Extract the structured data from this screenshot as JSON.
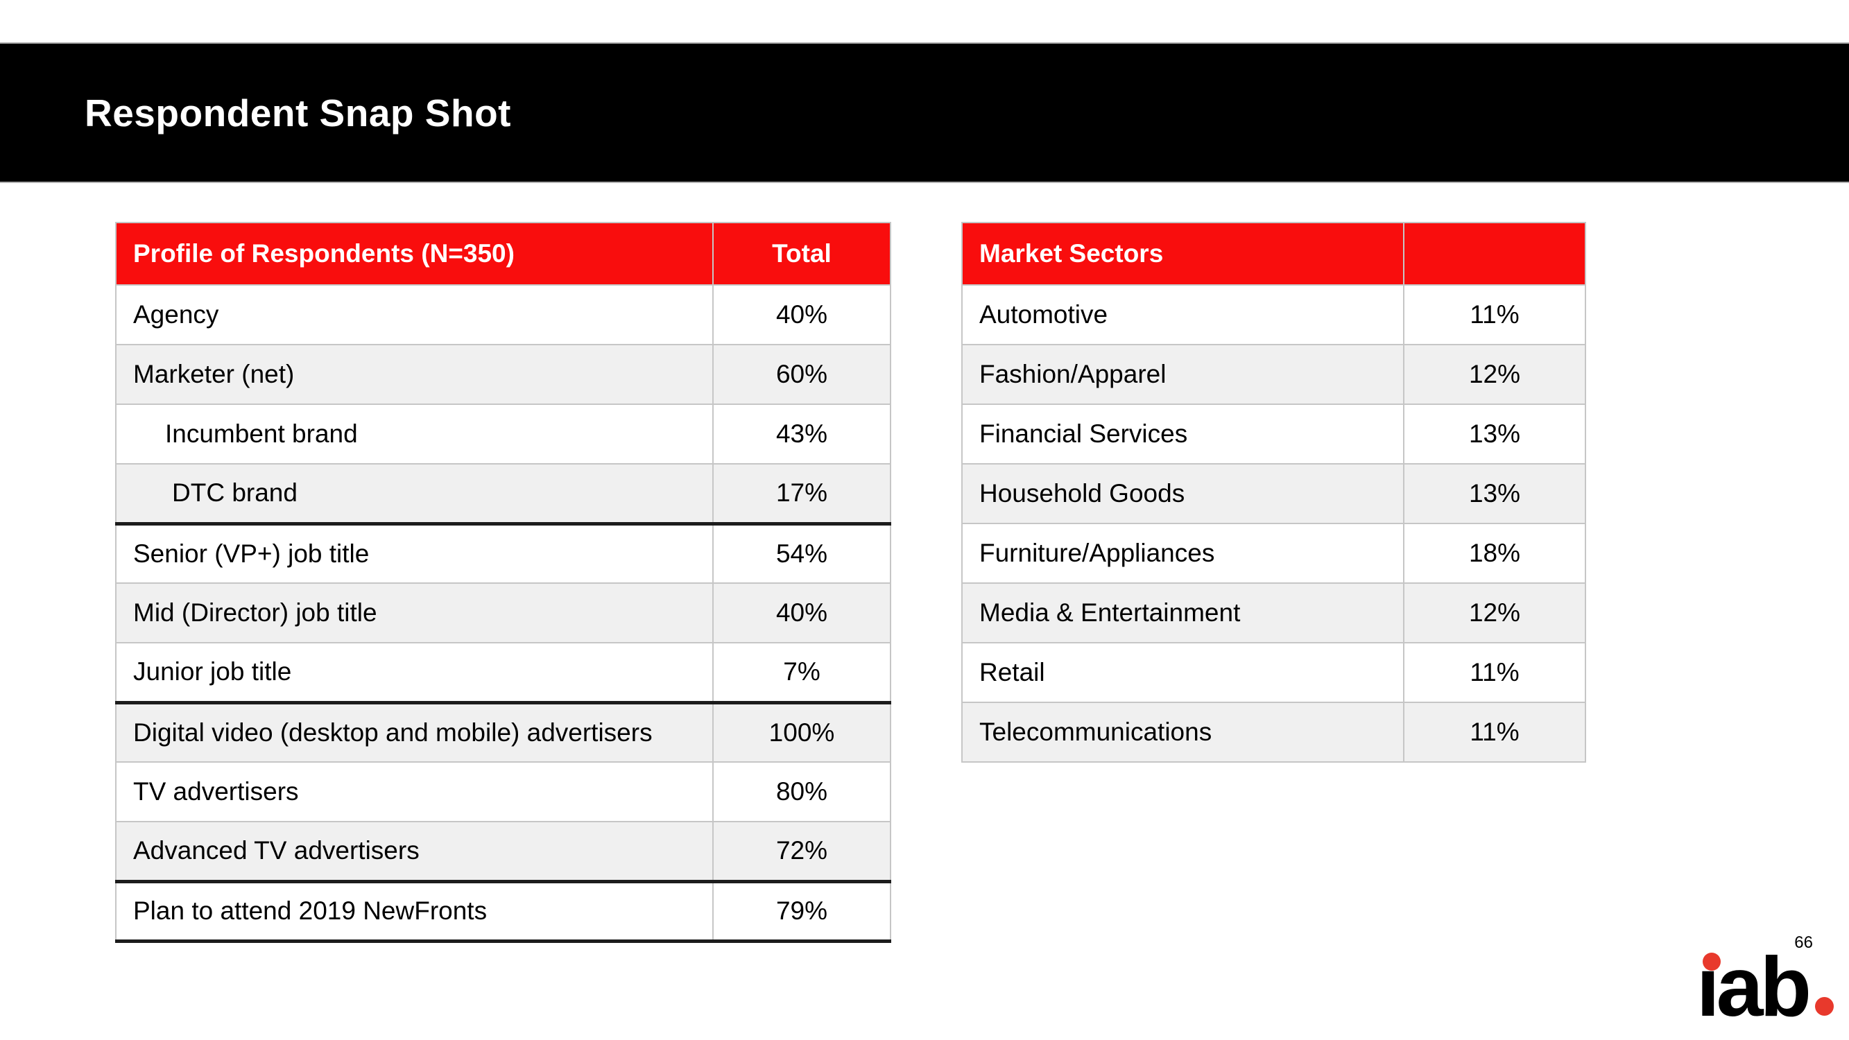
{
  "slide": {
    "title": "Respondent Snap Shot",
    "page_number": "66",
    "logo": {
      "text": "iab",
      "render_text": "ıab"
    }
  },
  "colors": {
    "header_band": "#000000",
    "accent_red": "#f90d0d",
    "logo_red": "#e8392c",
    "alt_row_gray": "#f0f0f0",
    "thin_border": "#c6c6c6",
    "thick_border": "#1c1c1c"
  },
  "left_table": {
    "header": {
      "label": "Profile of Respondents (N=350)",
      "value": "Total"
    },
    "rows": [
      {
        "label": "Agency",
        "value": "40%",
        "indent": 0,
        "section_break_below": false
      },
      {
        "label": "Marketer (net)",
        "value": "60%",
        "indent": 0,
        "section_break_below": false
      },
      {
        "label": "Incumbent brand",
        "value": "43%",
        "indent": 1,
        "section_break_below": false
      },
      {
        "label": "DTC brand",
        "value": "17%",
        "indent": 2,
        "section_break_below": true
      },
      {
        "label": "Senior (VP+) job title",
        "value": "54%",
        "indent": 0,
        "section_break_below": false
      },
      {
        "label": "Mid (Director) job title",
        "value": "40%",
        "indent": 0,
        "section_break_below": false
      },
      {
        "label": "Junior job title",
        "value": "7%",
        "indent": 0,
        "section_break_below": true
      },
      {
        "label": "Digital video (desktop and mobile) advertisers",
        "value": "100%",
        "indent": 0,
        "section_break_below": false
      },
      {
        "label": "TV advertisers",
        "value": "80%",
        "indent": 0,
        "section_break_below": false
      },
      {
        "label": "Advanced TV advertisers",
        "value": "72%",
        "indent": 0,
        "section_break_below": true
      },
      {
        "label": "Plan to attend 2019 NewFronts",
        "value": "79%",
        "indent": 0,
        "section_break_below": false
      }
    ]
  },
  "right_table": {
    "header": {
      "label": "Market Sectors",
      "value": ""
    },
    "rows": [
      {
        "label": "Automotive",
        "value": "11%"
      },
      {
        "label": "Fashion/Apparel",
        "value": "12%"
      },
      {
        "label": "Financial Services",
        "value": "13%"
      },
      {
        "label": "Household Goods",
        "value": "13%"
      },
      {
        "label": "Furniture/Appliances",
        "value": "18%"
      },
      {
        "label": "Media & Entertainment",
        "value": "12%"
      },
      {
        "label": "Retail",
        "value": "11%"
      },
      {
        "label": "Telecommunications",
        "value": "11%"
      }
    ]
  }
}
